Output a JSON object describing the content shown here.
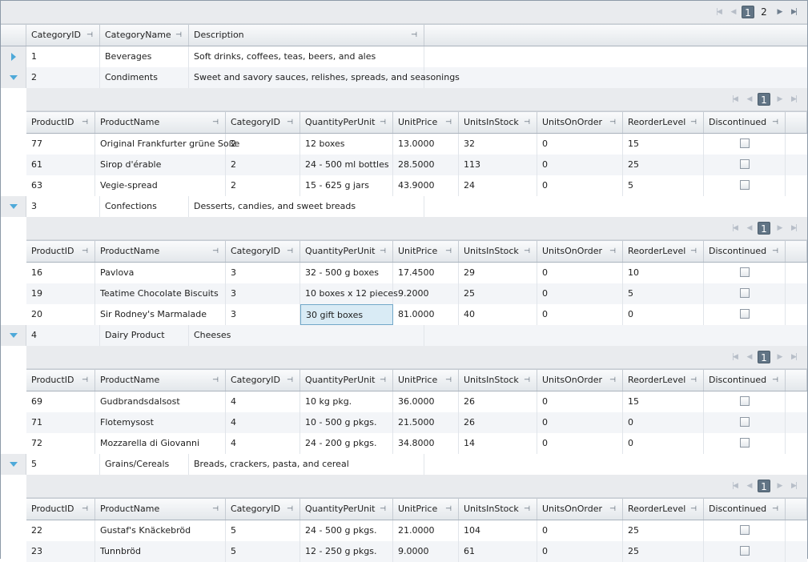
{
  "pager": {
    "pages": [
      "1",
      "2"
    ],
    "current": "1",
    "first_icon": "first-page-icon",
    "prev_icon": "prev-page-icon",
    "next_icon": "next-page-icon",
    "last_icon": "last-page-icon"
  },
  "master_columns": [
    "CategoryID",
    "CategoryName",
    "Description"
  ],
  "detail_columns": [
    "ProductID",
    "ProductName",
    "CategoryID",
    "QuantityPerUnit",
    "UnitPrice",
    "UnitsInStock",
    "UnitsOnOrder",
    "ReorderLevel",
    "Discontinued"
  ],
  "categories": [
    {
      "id": "1",
      "name": "Beverages",
      "description": "Soft drinks, coffees, teas, beers, and ales",
      "expanded": false
    },
    {
      "id": "2",
      "name": "Condiments",
      "description": "Sweet and savory sauces, relishes, spreads, and seasonings",
      "expanded": true,
      "detail_pager": {
        "current": "1"
      },
      "products": [
        {
          "ProductID": "77",
          "ProductName": "Original Frankfurter grüne Soße",
          "CategoryID": "2",
          "QuantityPerUnit": "12 boxes",
          "UnitPrice": "13.0000",
          "UnitsInStock": "32",
          "UnitsOnOrder": "0",
          "ReorderLevel": "15",
          "Discontinued": false
        },
        {
          "ProductID": "61",
          "ProductName": "Sirop d'érable",
          "CategoryID": "2",
          "QuantityPerUnit": "24 - 500 ml bottles",
          "UnitPrice": "28.5000",
          "UnitsInStock": "113",
          "UnitsOnOrder": "0",
          "ReorderLevel": "25",
          "Discontinued": false
        },
        {
          "ProductID": "63",
          "ProductName": "Vegie-spread",
          "CategoryID": "2",
          "QuantityPerUnit": "15 - 625 g jars",
          "UnitPrice": "43.9000",
          "UnitsInStock": "24",
          "UnitsOnOrder": "0",
          "ReorderLevel": "5",
          "Discontinued": false
        }
      ]
    },
    {
      "id": "3",
      "name": "Confections",
      "description": "Desserts, candies, and sweet breads",
      "expanded": true,
      "detail_pager": {
        "current": "1"
      },
      "products": [
        {
          "ProductID": "16",
          "ProductName": "Pavlova",
          "CategoryID": "3",
          "QuantityPerUnit": "32 - 500 g boxes",
          "UnitPrice": "17.4500",
          "UnitsInStock": "29",
          "UnitsOnOrder": "0",
          "ReorderLevel": "10",
          "Discontinued": false
        },
        {
          "ProductID": "19",
          "ProductName": "Teatime Chocolate Biscuits",
          "CategoryID": "3",
          "QuantityPerUnit": "10 boxes x 12 pieces",
          "UnitPrice": "9.2000",
          "UnitsInStock": "25",
          "UnitsOnOrder": "0",
          "ReorderLevel": "5",
          "Discontinued": false
        },
        {
          "ProductID": "20",
          "ProductName": "Sir Rodney's Marmalade",
          "CategoryID": "3",
          "QuantityPerUnit": "30 gift boxes",
          "UnitPrice": "81.0000",
          "UnitsInStock": "40",
          "UnitsOnOrder": "0",
          "ReorderLevel": "0",
          "Discontinued": false,
          "selected_cell": "QuantityPerUnit"
        }
      ]
    },
    {
      "id": "4",
      "name": "Dairy Product",
      "description": "Cheeses",
      "expanded": true,
      "detail_pager": {
        "current": "1"
      },
      "products": [
        {
          "ProductID": "69",
          "ProductName": "Gudbrandsdalsost",
          "CategoryID": "4",
          "QuantityPerUnit": "10 kg pkg.",
          "UnitPrice": "36.0000",
          "UnitsInStock": "26",
          "UnitsOnOrder": "0",
          "ReorderLevel": "15",
          "Discontinued": false
        },
        {
          "ProductID": "71",
          "ProductName": "Flotemysost",
          "CategoryID": "4",
          "QuantityPerUnit": "10 - 500 g pkgs.",
          "UnitPrice": "21.5000",
          "UnitsInStock": "26",
          "UnitsOnOrder": "0",
          "ReorderLevel": "0",
          "Discontinued": false
        },
        {
          "ProductID": "72",
          "ProductName": "Mozzarella di Giovanni",
          "CategoryID": "4",
          "QuantityPerUnit": "24 - 200 g pkgs.",
          "UnitPrice": "34.8000",
          "UnitsInStock": "14",
          "UnitsOnOrder": "0",
          "ReorderLevel": "0",
          "Discontinued": false
        }
      ]
    },
    {
      "id": "5",
      "name": "Grains/Cereals",
      "description": "Breads, crackers, pasta, and cereal",
      "expanded": true,
      "detail_pager": {
        "current": "1"
      },
      "products": [
        {
          "ProductID": "22",
          "ProductName": "Gustaf's Knäckebröd",
          "CategoryID": "5",
          "QuantityPerUnit": "24 - 500 g pkgs.",
          "UnitPrice": "21.0000",
          "UnitsInStock": "104",
          "UnitsOnOrder": "0",
          "ReorderLevel": "25",
          "Discontinued": false
        },
        {
          "ProductID": "23",
          "ProductName": "Tunnbröd",
          "CategoryID": "5",
          "QuantityPerUnit": "12 - 250 g pkgs.",
          "UnitPrice": "9.0000",
          "UnitsInStock": "61",
          "UnitsOnOrder": "0",
          "ReorderLevel": "25",
          "Discontinued": false
        }
      ]
    }
  ]
}
